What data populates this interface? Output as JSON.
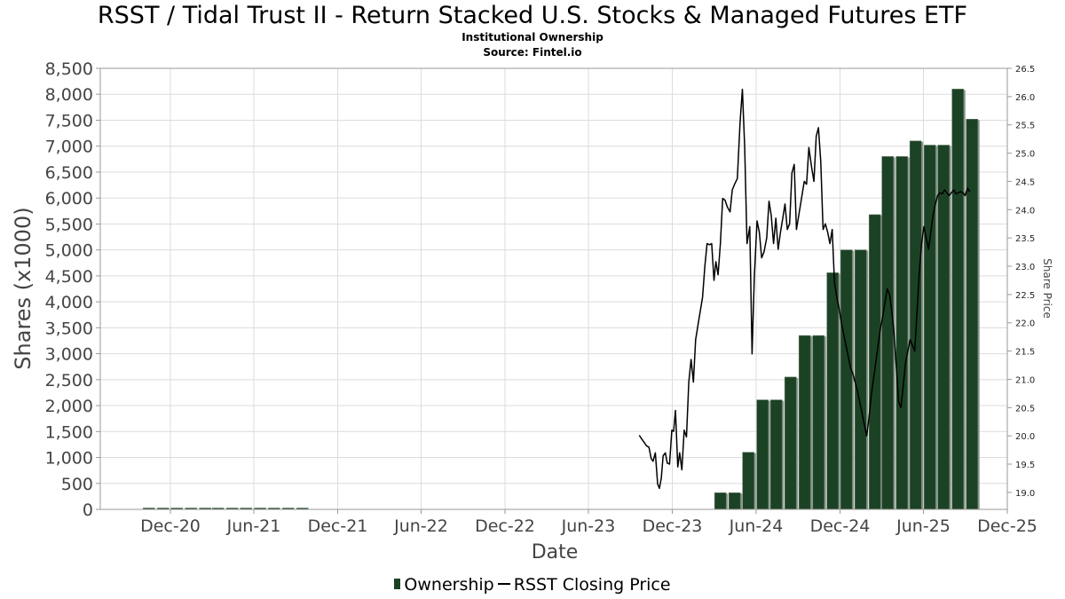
{
  "title": "RSST / Tidal Trust II - Return Stacked U.S. Stocks & Managed Futures ETF",
  "subtitle": "Institutional Ownership",
  "source": "Source: Fintel.io",
  "colors": {
    "bar": "#1c4225",
    "bar_shadow": "#8a948c",
    "line": "#000000",
    "grid": "#dcdcdc"
  },
  "chart_data": {
    "type": "bar",
    "xlabel": "Date",
    "ylabel": "Shares (x1000)",
    "y2label": "Share Price",
    "ylim": [
      0,
      8500
    ],
    "y2lim": [
      18.7,
      26.5
    ],
    "xlim": [
      "2020-07-01",
      "2025-12-01"
    ],
    "grid": true,
    "legend_position": "bottom",
    "yticks": [
      "0",
      "500",
      "1,000",
      "1,500",
      "2,000",
      "2,500",
      "3,000",
      "3,500",
      "4,000",
      "4,500",
      "5,000",
      "5,500",
      "6,000",
      "6,500",
      "7,000",
      "7,500",
      "8,000",
      "8,500"
    ],
    "y2ticks": [
      "19.0",
      "19.5",
      "20.0",
      "20.5",
      "21.0",
      "21.5",
      "22.0",
      "22.5",
      "23.0",
      "23.5",
      "24.0",
      "24.5",
      "25.0",
      "25.5",
      "26.0",
      "26.5"
    ],
    "xticks": [
      {
        "date": "2020-12-01",
        "label": "Dec-20"
      },
      {
        "date": "2021-06-01",
        "label": "Jun-21"
      },
      {
        "date": "2021-12-01",
        "label": "Dec-21"
      },
      {
        "date": "2022-06-01",
        "label": "Jun-22"
      },
      {
        "date": "2022-12-01",
        "label": "Dec-22"
      },
      {
        "date": "2023-06-01",
        "label": "Jun-23"
      },
      {
        "date": "2023-12-01",
        "label": "Dec-23"
      },
      {
        "date": "2024-06-01",
        "label": "Jun-24"
      },
      {
        "date": "2024-12-01",
        "label": "Dec-24"
      },
      {
        "date": "2025-06-01",
        "label": "Jun-25"
      },
      {
        "date": "2025-12-01",
        "label": "Dec-25"
      }
    ],
    "series": [
      {
        "name": "Ownership",
        "type": "bar",
        "points": [
          {
            "date": "2020-10-15",
            "value": 15
          },
          {
            "date": "2020-11-15",
            "value": 15
          },
          {
            "date": "2020-12-15",
            "value": 15
          },
          {
            "date": "2021-01-15",
            "value": 15
          },
          {
            "date": "2021-02-15",
            "value": 15
          },
          {
            "date": "2021-03-15",
            "value": 15
          },
          {
            "date": "2021-04-15",
            "value": 15
          },
          {
            "date": "2021-05-15",
            "value": 15
          },
          {
            "date": "2021-06-15",
            "value": 15
          },
          {
            "date": "2021-07-15",
            "value": 15
          },
          {
            "date": "2021-08-15",
            "value": 15
          },
          {
            "date": "2021-09-15",
            "value": 15
          },
          {
            "date": "2024-03-15",
            "value": 320
          },
          {
            "date": "2024-04-15",
            "value": 320
          },
          {
            "date": "2024-05-15",
            "value": 1100
          },
          {
            "date": "2024-06-15",
            "value": 2110
          },
          {
            "date": "2024-07-15",
            "value": 2110
          },
          {
            "date": "2024-08-15",
            "value": 2550
          },
          {
            "date": "2024-09-15",
            "value": 3350
          },
          {
            "date": "2024-10-15",
            "value": 3350
          },
          {
            "date": "2024-11-15",
            "value": 4560
          },
          {
            "date": "2024-12-15",
            "value": 5000
          },
          {
            "date": "2025-01-15",
            "value": 5000
          },
          {
            "date": "2025-02-15",
            "value": 5680
          },
          {
            "date": "2025-03-15",
            "value": 6800
          },
          {
            "date": "2025-04-15",
            "value": 6800
          },
          {
            "date": "2025-05-15",
            "value": 7100
          },
          {
            "date": "2025-06-15",
            "value": 7020
          },
          {
            "date": "2025-07-15",
            "value": 7020
          },
          {
            "date": "2025-08-15",
            "value": 8100
          },
          {
            "date": "2025-09-15",
            "value": 7520
          }
        ]
      },
      {
        "name": "RSST Closing Price",
        "type": "line",
        "axis": "right",
        "points": [
          [
            "2023-09-20",
            20.01
          ],
          [
            "2023-09-25",
            19.95
          ],
          [
            "2023-10-01",
            19.88
          ],
          [
            "2023-10-06",
            19.82
          ],
          [
            "2023-10-11",
            19.8
          ],
          [
            "2023-10-16",
            19.6
          ],
          [
            "2023-10-20",
            19.55
          ],
          [
            "2023-10-25",
            19.7
          ],
          [
            "2023-10-30",
            19.15
          ],
          [
            "2023-11-03",
            19.07
          ],
          [
            "2023-11-07",
            19.25
          ],
          [
            "2023-11-11",
            19.65
          ],
          [
            "2023-11-16",
            19.7
          ],
          [
            "2023-11-20",
            19.52
          ],
          [
            "2023-11-25",
            19.5
          ],
          [
            "2023-11-30",
            20.1
          ],
          [
            "2023-12-04",
            20.08
          ],
          [
            "2023-12-08",
            20.45
          ],
          [
            "2023-12-13",
            19.45
          ],
          [
            "2023-12-17",
            19.7
          ],
          [
            "2023-12-22",
            19.4
          ],
          [
            "2023-12-27",
            20.1
          ],
          [
            "2024-01-01",
            19.98
          ],
          [
            "2024-01-06",
            20.95
          ],
          [
            "2024-01-11",
            21.35
          ],
          [
            "2024-01-16",
            20.95
          ],
          [
            "2024-01-21",
            21.7
          ],
          [
            "2024-01-28",
            22.05
          ],
          [
            "2024-02-05",
            22.45
          ],
          [
            "2024-02-10",
            23.0
          ],
          [
            "2024-02-15",
            23.4
          ],
          [
            "2024-02-20",
            23.38
          ],
          [
            "2024-02-25",
            23.4
          ],
          [
            "2024-03-01",
            22.75
          ],
          [
            "2024-03-05",
            23.08
          ],
          [
            "2024-03-10",
            22.85
          ],
          [
            "2024-03-15",
            23.4
          ],
          [
            "2024-03-20",
            24.2
          ],
          [
            "2024-03-25",
            24.17
          ],
          [
            "2024-03-30",
            24.05
          ],
          [
            "2024-04-05",
            23.96
          ],
          [
            "2024-04-10",
            24.35
          ],
          [
            "2024-04-15",
            24.45
          ],
          [
            "2024-04-21",
            24.55
          ],
          [
            "2024-04-27",
            25.55
          ],
          [
            "2024-05-02",
            26.13
          ],
          [
            "2024-05-07",
            25.1
          ],
          [
            "2024-05-12",
            23.4
          ],
          [
            "2024-05-18",
            23.7
          ],
          [
            "2024-05-23",
            21.45
          ],
          [
            "2024-05-28",
            22.8
          ],
          [
            "2024-06-03",
            23.8
          ],
          [
            "2024-06-08",
            23.6
          ],
          [
            "2024-06-13",
            23.15
          ],
          [
            "2024-06-18",
            23.25
          ],
          [
            "2024-06-24",
            23.5
          ],
          [
            "2024-06-29",
            24.15
          ],
          [
            "2024-07-04",
            23.9
          ],
          [
            "2024-07-09",
            23.4
          ],
          [
            "2024-07-14",
            23.85
          ],
          [
            "2024-07-19",
            23.3
          ],
          [
            "2024-07-24",
            23.6
          ],
          [
            "2024-07-29",
            23.85
          ],
          [
            "2024-08-03",
            24.1
          ],
          [
            "2024-08-08",
            23.65
          ],
          [
            "2024-08-13",
            23.75
          ],
          [
            "2024-08-18",
            24.65
          ],
          [
            "2024-08-23",
            24.8
          ],
          [
            "2024-08-28",
            23.65
          ],
          [
            "2024-09-02",
            23.9
          ],
          [
            "2024-09-08",
            24.2
          ],
          [
            "2024-09-14",
            24.5
          ],
          [
            "2024-09-19",
            24.45
          ],
          [
            "2024-09-24",
            25.1
          ],
          [
            "2024-09-30",
            24.75
          ],
          [
            "2024-10-05",
            24.5
          ],
          [
            "2024-10-10",
            25.3
          ],
          [
            "2024-10-15",
            25.45
          ],
          [
            "2024-10-20",
            24.85
          ],
          [
            "2024-10-25",
            23.65
          ],
          [
            "2024-10-30",
            23.75
          ],
          [
            "2024-11-04",
            23.6
          ],
          [
            "2024-11-09",
            23.4
          ],
          [
            "2024-11-14",
            23.65
          ],
          [
            "2024-11-19",
            22.7
          ],
          [
            "2024-11-24",
            22.45
          ],
          [
            "2024-11-29",
            22.25
          ],
          [
            "2024-12-04",
            22.0
          ],
          [
            "2024-12-09",
            21.8
          ],
          [
            "2024-12-14",
            21.6
          ],
          [
            "2024-12-19",
            21.4
          ],
          [
            "2024-12-24",
            21.2
          ],
          [
            "2024-12-29",
            21.1
          ],
          [
            "2025-01-03",
            20.95
          ],
          [
            "2025-01-08",
            20.8
          ],
          [
            "2025-01-13",
            20.6
          ],
          [
            "2025-01-18",
            20.4
          ],
          [
            "2025-01-23",
            20.2
          ],
          [
            "2025-01-28",
            20.0
          ],
          [
            "2025-02-02",
            20.3
          ],
          [
            "2025-02-07",
            20.7
          ],
          [
            "2025-02-12",
            21.0
          ],
          [
            "2025-02-17",
            21.3
          ],
          [
            "2025-02-22",
            21.6
          ],
          [
            "2025-02-27",
            21.9
          ],
          [
            "2025-03-04",
            22.1
          ],
          [
            "2025-03-09",
            22.35
          ],
          [
            "2025-03-14",
            22.6
          ],
          [
            "2025-03-19",
            22.5
          ],
          [
            "2025-03-24",
            22.2
          ],
          [
            "2025-03-29",
            21.8
          ],
          [
            "2025-04-03",
            21.2
          ],
          [
            "2025-04-08",
            20.6
          ],
          [
            "2025-04-13",
            20.5
          ],
          [
            "2025-04-18",
            20.9
          ],
          [
            "2025-04-23",
            21.3
          ],
          [
            "2025-04-28",
            21.5
          ],
          [
            "2025-05-03",
            21.7
          ],
          [
            "2025-05-08",
            21.6
          ],
          [
            "2025-05-13",
            21.5
          ],
          [
            "2025-05-18",
            22.2
          ],
          [
            "2025-05-23",
            22.9
          ],
          [
            "2025-05-28",
            23.4
          ],
          [
            "2025-06-02",
            23.7
          ],
          [
            "2025-06-07",
            23.5
          ],
          [
            "2025-06-12",
            23.3
          ],
          [
            "2025-06-17",
            23.6
          ],
          [
            "2025-06-22",
            23.9
          ],
          [
            "2025-06-27",
            24.1
          ],
          [
            "2025-07-02",
            24.25
          ],
          [
            "2025-07-07",
            24.3
          ],
          [
            "2025-07-12",
            24.28
          ],
          [
            "2025-07-17",
            24.35
          ],
          [
            "2025-07-22",
            24.3
          ],
          [
            "2025-07-27",
            24.25
          ],
          [
            "2025-08-01",
            24.3
          ],
          [
            "2025-08-06",
            24.35
          ],
          [
            "2025-08-11",
            24.28
          ],
          [
            "2025-08-16",
            24.3
          ],
          [
            "2025-08-21",
            24.32
          ],
          [
            "2025-08-26",
            24.3
          ],
          [
            "2025-08-31",
            24.25
          ],
          [
            "2025-09-05",
            24.38
          ],
          [
            "2025-09-10",
            24.32
          ]
        ]
      }
    ]
  }
}
